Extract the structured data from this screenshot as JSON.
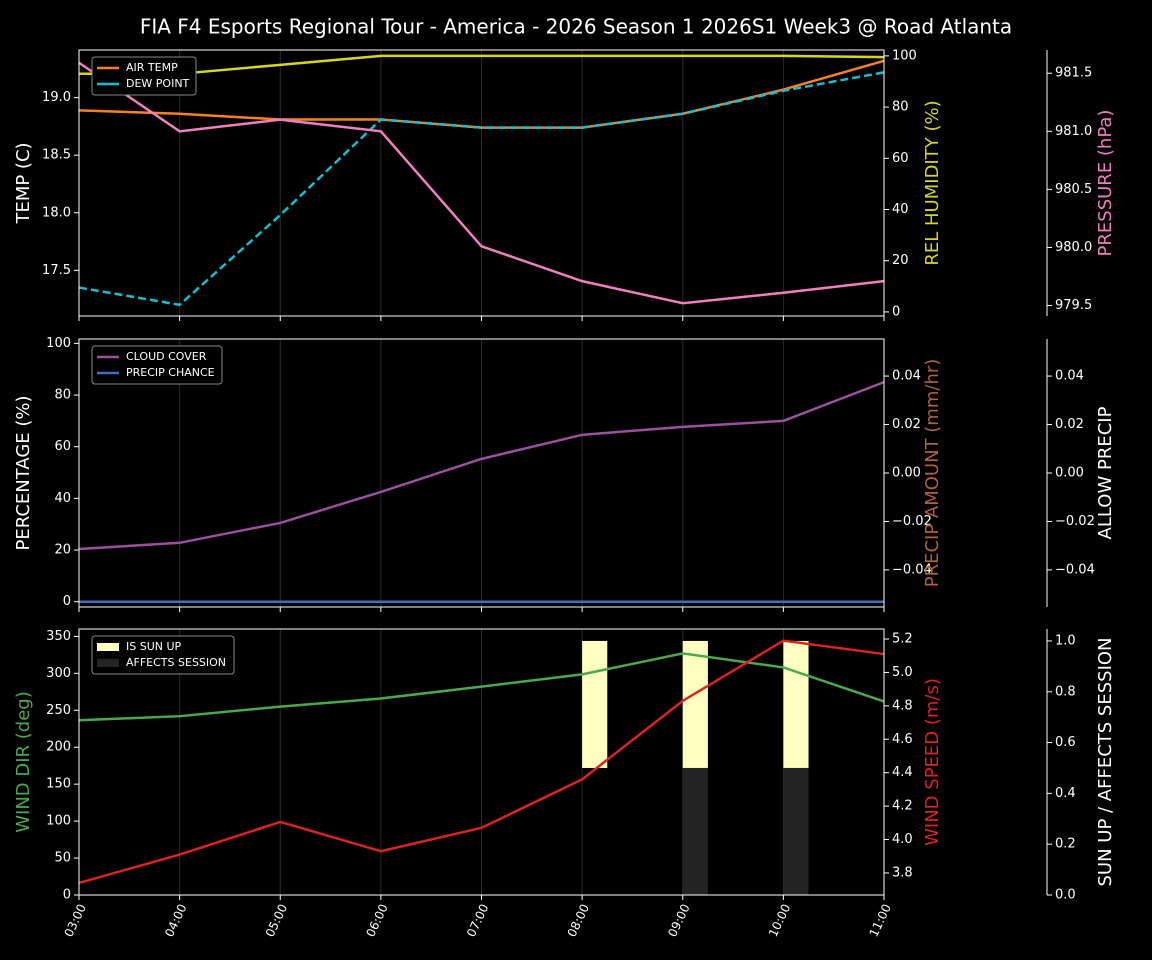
{
  "title": "FIA F4 Esports Regional Tour - America - 2026 Season 1 2026S1 Week3 @ Road Atlanta",
  "chart_data": [
    {
      "type": "line",
      "grid": "x",
      "legend": "upper left",
      "ylabel": "TEMP (C)",
      "ylabel_color": "#ffffff",
      "ylim": [
        17.103,
        19.414
      ],
      "yticks": [
        17.5,
        {
          "value": 18,
          "label": "18.0"
        },
        18.5,
        {
          "value": 19,
          "label": "19.0"
        }
      ],
      "y2label": "REL HUMIDITY (%)",
      "y2label_color": "#d6d620",
      "y2lim": [
        -1.6,
        102.3
      ],
      "y2ticks": [
        0,
        20,
        40,
        60,
        80,
        100
      ],
      "y3label": "PRESSURE (hPa)",
      "y3label_color": "#f07fbf",
      "y3lim": [
        979.41,
        981.7
      ],
      "y3ticks": [
        979.5,
        {
          "value": 980,
          "label": "980.0"
        },
        980.5,
        {
          "value": 981,
          "label": "981.0"
        },
        981.5
      ],
      "series": [
        {
          "axis": "y2",
          "color": "#d6d620",
          "values": [
            93,
            93,
            96.5,
            100,
            100,
            100,
            100,
            100,
            99.5
          ]
        },
        {
          "name": "AIR TEMP",
          "axis": "y",
          "color": "#f5821f",
          "values": [
            18.89,
            18.86,
            18.81,
            18.81,
            18.74,
            18.74,
            18.86,
            19.07,
            19.32
          ]
        },
        {
          "name": "DEW POINT",
          "axis": "y",
          "color": "#17becf",
          "linestyle": "dashed",
          "values": [
            17.35,
            17.2,
            17.98,
            18.81,
            18.74,
            18.74,
            18.86,
            19.06,
            19.22
          ]
        },
        {
          "axis": "y3",
          "color": "#f07fbf",
          "values": [
            981.59,
            981.0,
            981.1,
            981.0,
            980.01,
            979.71,
            979.52,
            979.61,
            979.71
          ]
        }
      ]
    },
    {
      "type": "line",
      "grid": "x",
      "legend": "upper left",
      "ylabel": "PERCENTAGE (%)",
      "ylabel_color": "#ffffff",
      "ylim": [
        -2.05,
        101.7
      ],
      "yticks": [
        0,
        20,
        40,
        60,
        80,
        100
      ],
      "y2label": "PRECIP AMOUNT (mm/hr)",
      "y2label_color": "#b0603a",
      "y2lim": [
        -0.0553,
        0.0553
      ],
      "y2ticks": [
        {
          "value": -0.04,
          "label": "−0.04"
        },
        {
          "value": -0.02,
          "label": "−0.02"
        },
        {
          "value": 0,
          "label": "0.00"
        },
        0.02,
        0.04
      ],
      "y3label": "ALLOW PRECIP",
      "y3label_color": "#ffffff",
      "y3lim": [
        -0.0553,
        0.0553
      ],
      "y3ticks": [
        {
          "value": -0.04,
          "label": "−0.04"
        },
        {
          "value": -0.02,
          "label": "−0.02"
        },
        {
          "value": 0,
          "label": "0.00"
        },
        0.02,
        0.04
      ],
      "series": [
        {
          "name": "CLOUD COVER",
          "axis": "y",
          "color": "#9b4f9f",
          "values": [
            20.4,
            22.8,
            30.5,
            42.5,
            55.3,
            64.6,
            67.7,
            70,
            85
          ]
        },
        {
          "name": "PRECIP CHANCE",
          "axis": "y",
          "color": "#3a6fc4",
          "values": [
            0,
            0,
            0,
            0,
            0,
            0,
            0,
            0,
            0
          ]
        }
      ]
    },
    {
      "type": "line",
      "grid": "x",
      "legend": "upper left",
      "categories": [
        "03:00",
        "04:00",
        "05:00",
        "06:00",
        "07:00",
        "08:00",
        "09:00",
        "10:00",
        "11:00"
      ],
      "ylabel": "WIND DIR (deg)",
      "ylabel_color": "#4aaa4a",
      "ylim": [
        0,
        360
      ],
      "yticks": [
        0,
        50,
        100,
        150,
        200,
        250,
        300,
        350
      ],
      "y2label": "WIND SPEED (m/s)",
      "y2label_color": "#dd2222",
      "y2lim": [
        3.668,
        5.26
      ],
      "y2ticks": [
        3.8,
        {
          "value": 4,
          "label": "4.0"
        },
        4.2,
        4.4,
        4.6,
        4.8,
        {
          "value": 5,
          "label": "5.0"
        },
        5.2
      ],
      "y3label": "SUN UP / AFFECTS SESSION",
      "y3label_color": "#ffffff",
      "y3lim": [
        0,
        1.047
      ],
      "y3ticks": [
        {
          "value": 0,
          "label": "0.0"
        },
        0.2,
        0.4,
        0.6,
        0.8,
        {
          "value": 1,
          "label": "1.0"
        }
      ],
      "series": [
        {
          "name": "IS SUN UP",
          "type": "bar",
          "axis": "y3",
          "color": "#ffffc0",
          "values": [
            0,
            0,
            0,
            0,
            0,
            1,
            1,
            1,
            0
          ]
        },
        {
          "name": "AFFECTS SESSION",
          "type": "bar",
          "axis": "y3",
          "color": "#242424",
          "values": [
            0,
            0,
            0,
            0,
            0,
            0,
            1,
            1,
            0
          ]
        },
        {
          "axis": "y",
          "color": "#4aaa4a",
          "values": [
            236.5,
            242,
            255,
            266,
            282,
            298.6,
            327,
            308,
            262
          ]
        },
        {
          "axis": "y2",
          "color": "#dd2222",
          "values": [
            3.74,
            3.91,
            4.105,
            3.93,
            4.07,
            4.36,
            4.83,
            5.19,
            5.11
          ]
        }
      ]
    }
  ]
}
